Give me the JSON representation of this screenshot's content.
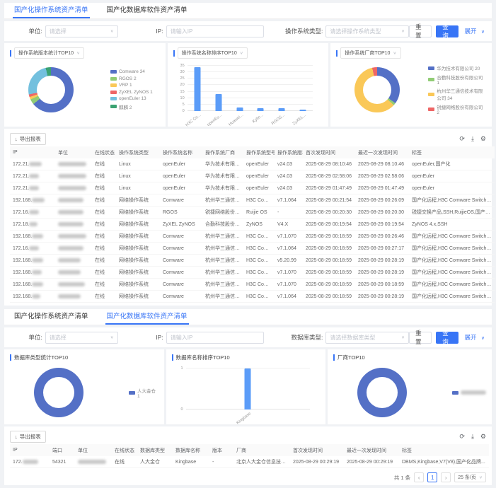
{
  "colors": {
    "primary": "#3875f6",
    "bar": "#5b9cf8",
    "palette": [
      "#5470c6",
      "#91cc75",
      "#fac858",
      "#ee6666",
      "#73c0de",
      "#3ba272"
    ]
  },
  "icons": {
    "caret": "∨",
    "export": "↓",
    "refresh": "⟳",
    "download": "⤓",
    "settings": "⚙",
    "prev": "‹",
    "next": "›"
  },
  "section_os": {
    "tabs": [
      {
        "label": "国产化操作系统资产清单"
      },
      {
        "label": "国产化数据库软件资产清单"
      }
    ],
    "filters": {
      "unit_label": "单位:",
      "unit_placeholder": "请选择",
      "ip_label": "IP:",
      "ip_placeholder": "请输入IP",
      "type_label": "操作系统类型:",
      "type_placeholder": "请选择操作系统类型",
      "reset": "重 置",
      "search": "查 询",
      "expand": "展开"
    },
    "charts": [
      {
        "type": "donut",
        "title": "操作系统版本统计TOP10",
        "slices": [
          {
            "label": "Comware",
            "value": 34,
            "color": "#5470c6"
          },
          {
            "label": "RGOS",
            "value": 2,
            "color": "#91cc75"
          },
          {
            "label": "VRP",
            "value": 1,
            "color": "#fac858"
          },
          {
            "label": "ZyXEL ZyNOS",
            "value": 1,
            "color": "#ee6666"
          },
          {
            "label": "openEuler",
            "value": 13,
            "color": "#73c0de"
          },
          {
            "label": "麒麟",
            "value": 2,
            "color": "#3ba272"
          }
        ]
      },
      {
        "type": "bar",
        "title": "操作系统名称排序TOP10",
        "categories": [
          "H3C Co...",
          "openEu...",
          "Huawei...",
          "Kylin...",
          "RGOS...",
          "ZyXEL..."
        ],
        "values": [
          34,
          13,
          3,
          2,
          2,
          1
        ],
        "ymax": 35,
        "yticks": [
          0,
          5,
          10,
          15,
          20,
          25,
          30,
          35
        ],
        "color": "#5b9cf8"
      },
      {
        "type": "donut",
        "title": "操作系统厂商TOP10",
        "slices": [
          {
            "label": "华为技术有限公司",
            "value": 20,
            "color": "#5470c6"
          },
          {
            "label": "合勤科技股份有限公司",
            "value": 1,
            "color": "#91cc75"
          },
          {
            "label": "杭州华三通信技术有限公司",
            "value": 34,
            "color": "#fac858"
          },
          {
            "label": "锐捷网络股份有限公司",
            "value": 2,
            "color": "#ee6666"
          }
        ]
      }
    ],
    "table": {
      "export_label": "导出报表",
      "headers": [
        "IP",
        "单位",
        "在线状态",
        "操作系统类型",
        "操作系统名称",
        "操作系统厂商",
        "操作系统型号",
        "操作系统版本",
        "首次发现时间",
        "最近一次发现时间",
        "标签"
      ],
      "rows": [
        [
          {
            "pre": "172.21.",
            "blur": 18
          },
          {
            "blur": 40
          },
          "在线",
          "Linux",
          "openEuler",
          "华为技术有限公司",
          "openEuler",
          "v24.03",
          "2025-08-29 08:10:46",
          "2025-08-29 08:10:46",
          "openEuler,国产化"
        ],
        [
          {
            "pre": "172.21.",
            "blur": 14
          },
          {
            "blur": 40
          },
          "在线",
          "Linux",
          "openEuler",
          "华为技术有限公司",
          "openEuler",
          "v24.03",
          "2025-08-29 02:58:06",
          "2025-08-29 02:58:06",
          "openEuler"
        ],
        [
          {
            "pre": "172.21.",
            "blur": 14
          },
          {
            "blur": 40
          },
          "在线",
          "Linux",
          "openEuler",
          "华为技术有限公司",
          "openEuler",
          "v24.03",
          "2025-08-29 01:47:49",
          "2025-08-29 01:47:49",
          "openEuler"
        ],
        [
          {
            "pre": "192.168.",
            "blur": 18
          },
          {
            "blur": 36
          },
          "在线",
          "网络操作系统",
          "Comware",
          "杭州华三通信技术有...",
          "H3C Comware",
          "v7.1.064",
          "2025-08-29 00:21:54",
          "2025-08-29 00:26:09",
          "国产化远程,H3C Comware Switch,H3C,H3C 安全产品贯..."
        ],
        [
          {
            "pre": "172.16.",
            "blur": 14
          },
          {
            "blur": 36
          },
          "在线",
          "网络操作系统",
          "RGOS",
          "锐捷网络股份有限公司",
          "Ruijie OS",
          "-",
          "2025-08-29 00:20:30",
          "2025-08-29 00:20:30",
          "锐捷交换产品,SSH,RuijieOS,国产化,锐捷,Ruijie"
        ],
        [
          {
            "pre": "172.18.",
            "blur": 12
          },
          {
            "blur": 36
          },
          "在线",
          "网络操作系统",
          "ZyXEL ZyNOS",
          "合勤科技股份有限公司",
          "ZyNOS",
          "V4.X",
          "2025-08-29 00:19:54",
          "2025-08-29 00:19:54",
          "ZyNOS 4.x,SSH"
        ],
        [
          {
            "pre": "192.168.",
            "blur": 16
          },
          {
            "blur": 40
          },
          "在线",
          "网络操作系统",
          "Comware",
          "杭州华三通信技术有...",
          "H3C Comware",
          "v7.1.070",
          "2025-08-29 00:18:59",
          "2025-08-29 00:26:46",
          "国产化远程,H3C Comware Switch,H3C,SSH,H3C Comw..."
        ],
        [
          {
            "pre": "172.16.",
            "blur": 14
          },
          {
            "blur": 36
          },
          "在线",
          "网络操作系统",
          "Comware",
          "杭州华三通信技术有...",
          "H3C Comware",
          "v7.1.064",
          "2025-08-29 00:18:59",
          "2025-08-29 00:27:17",
          "国产化远程,H3C Comware Switch,H3C,SSH,H3C Comw..."
        ],
        [
          {
            "pre": "192.168.",
            "blur": 16
          },
          {
            "blur": 32
          },
          "在线",
          "网络操作系统",
          "Comware",
          "杭州华三通信技术有...",
          "H3C Comware",
          "v5.20.99",
          "2025-08-29 00:18:59",
          "2025-08-29 00:28:19",
          "国产化远程,H3C Comware Switch,H3C,SSH,H3C Comw..."
        ],
        [
          {
            "pre": "192.168.",
            "blur": 14
          },
          {
            "blur": 32
          },
          "在线",
          "网络操作系统",
          "Comware",
          "杭州华三通信技术有...",
          "H3C Comware",
          "v7.1.070",
          "2025-08-29 00:18:59",
          "2025-08-29 00:28:19",
          "国产化远程,H3C Comware Switch,H3C,SSH,H3C Comw..."
        ],
        [
          {
            "pre": "192.168.",
            "blur": 16
          },
          {
            "blur": 38
          },
          "在线",
          "网络操作系统",
          "Comware",
          "杭州华三通信技术有...",
          "H3C Comware",
          "v7.1.070",
          "2025-08-29 00:18:59",
          "2025-08-29 00:18:59",
          "国产化远程,H3C Comware Switch,H3C,SSH,H3C Comw..."
        ],
        [
          {
            "pre": "192.168.",
            "blur": 12
          },
          {
            "blur": 32
          },
          "在线",
          "网络操作系统",
          "Comware",
          "杭州华三通信技术有...",
          "H3C Comware",
          "v7.1.064",
          "2025-08-29 00:18:59",
          "2025-08-29 00:28:19",
          "国产化远程,H3C Comware Switch,H3C,H3C 安全产品贯..."
        ]
      ]
    }
  },
  "section_db": {
    "tabs": [
      {
        "label": "国产化操作系统资产清单"
      },
      {
        "label": "国产化数据库软件资产清单"
      }
    ],
    "filters": {
      "unit_label": "单位:",
      "unit_placeholder": "请选择",
      "ip_label": "IP:",
      "ip_placeholder": "请输入IP",
      "type_label": "数据库类型:",
      "type_placeholder": "请选择数据库类型",
      "reset": "重 置",
      "search": "查 询",
      "expand": "展开"
    },
    "charts": [
      {
        "type": "donut",
        "title": "数据库类型统计TOP10",
        "slices": [
          {
            "label": "人大金仓",
            "value": 1,
            "color": "#5470c6"
          }
        ]
      },
      {
        "type": "bar",
        "title": "数据库名称排序TOP10",
        "categories": [
          "Kingbase"
        ],
        "values": [
          1
        ],
        "ymax": 1,
        "yticks": [
          0,
          1
        ],
        "color": "#5b9cf8"
      },
      {
        "type": "donut",
        "title": "厂商TOP10",
        "slices": [
          {
            "label": "",
            "value": 1,
            "color": "#5470c6",
            "redacted": true
          }
        ]
      }
    ],
    "table": {
      "export_label": "导出报表",
      "headers": [
        "IP",
        "端口",
        "单位",
        "在线状态",
        "数据库类型",
        "数据库名称",
        "版本",
        "厂商",
        "首次发现时间",
        "最近一次发现时间",
        "标签"
      ],
      "rows": [
        [
          {
            "pre": "172.",
            "blur": 22
          },
          "54321",
          {
            "blur": 40
          },
          "在线",
          "人大金仓",
          "Kingbase",
          "-",
          "北京人大金仓信息技术...",
          "2025-08-29 00:29:19",
          "2025-08-29 00:29:19",
          "DBMS,Kingbase,V7(V8),国产化品牌..."
        ]
      ],
      "pagination": {
        "total": "共 1 条",
        "page": "1",
        "size": "25 条/页"
      }
    }
  }
}
